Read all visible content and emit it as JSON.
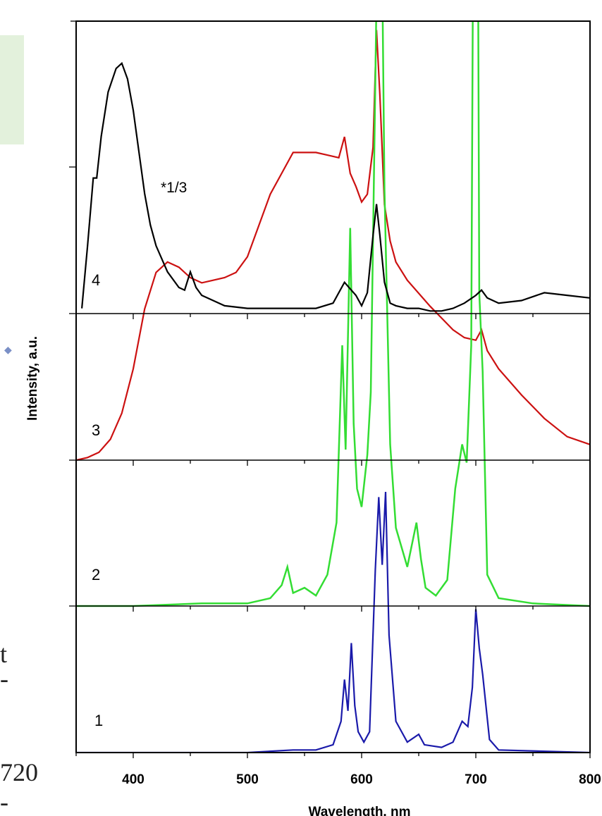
{
  "chart_data": {
    "type": "line",
    "title": "",
    "xlabel": "Wavelength, nm",
    "ylabel": "Intensity, a.u.",
    "xlim": [
      350,
      800
    ],
    "xticks": [
      "400",
      "500",
      "600",
      "700",
      "800"
    ],
    "panel_labels": [
      "4",
      "3",
      "2",
      "1"
    ],
    "annotation": "*1/3",
    "series": [
      {
        "name": "4",
        "color": "#000000",
        "x": [
          355,
          360,
          365,
          368,
          372,
          378,
          385,
          390,
          395,
          400,
          405,
          410,
          415,
          420,
          430,
          440,
          445,
          450,
          455,
          460,
          470,
          480,
          500,
          520,
          540,
          560,
          575,
          585,
          595,
          600,
          605,
          610,
          613,
          616,
          620,
          625,
          630,
          640,
          650,
          660,
          670,
          680,
          690,
          700,
          705,
          710,
          720,
          740,
          760,
          780,
          800
        ],
        "y": [
          0.02,
          0.26,
          0.52,
          0.52,
          0.68,
          0.85,
          0.94,
          0.96,
          0.9,
          0.78,
          0.62,
          0.46,
          0.34,
          0.26,
          0.16,
          0.1,
          0.09,
          0.16,
          0.1,
          0.07,
          0.05,
          0.03,
          0.02,
          0.02,
          0.02,
          0.02,
          0.04,
          0.12,
          0.07,
          0.03,
          0.08,
          0.3,
          0.42,
          0.3,
          0.12,
          0.04,
          0.03,
          0.02,
          0.02,
          0.01,
          0.01,
          0.02,
          0.04,
          0.07,
          0.09,
          0.06,
          0.04,
          0.05,
          0.08,
          0.07,
          0.06
        ]
      },
      {
        "name": "3",
        "color": "#cc1111",
        "x": [
          350,
          360,
          370,
          380,
          390,
          400,
          410,
          420,
          430,
          440,
          450,
          460,
          470,
          480,
          490,
          500,
          510,
          520,
          530,
          540,
          550,
          560,
          570,
          580,
          585,
          590,
          595,
          600,
          605,
          610,
          613,
          616,
          620,
          625,
          630,
          640,
          660,
          680,
          690,
          700,
          705,
          710,
          720,
          740,
          760,
          780,
          800
        ],
        "y": [
          0.0,
          0.01,
          0.03,
          0.08,
          0.18,
          0.35,
          0.58,
          0.72,
          0.76,
          0.74,
          0.7,
          0.68,
          0.69,
          0.7,
          0.72,
          0.78,
          0.9,
          1.02,
          1.1,
          1.18,
          1.18,
          1.18,
          1.17,
          1.16,
          1.24,
          1.1,
          1.05,
          0.99,
          1.02,
          1.2,
          1.65,
          1.4,
          0.98,
          0.84,
          0.76,
          0.69,
          0.59,
          0.5,
          0.47,
          0.46,
          0.5,
          0.42,
          0.35,
          0.25,
          0.16,
          0.09,
          0.06
        ]
      },
      {
        "name": "2",
        "color": "#33dd33",
        "x": [
          350,
          400,
          460,
          500,
          520,
          530,
          535,
          540,
          550,
          560,
          570,
          578,
          583,
          586,
          590,
          593,
          596,
          600,
          605,
          608,
          612,
          616,
          620,
          625,
          630,
          640,
          648,
          652,
          656,
          665,
          675,
          682,
          688,
          692,
          696,
          700,
          703,
          706,
          710,
          720,
          750,
          800
        ],
        "y": [
          0.0,
          0.0,
          0.01,
          0.01,
          0.03,
          0.08,
          0.15,
          0.05,
          0.07,
          0.04,
          0.12,
          0.32,
          1.0,
          0.6,
          1.45,
          0.7,
          0.45,
          0.38,
          0.58,
          0.82,
          2.0,
          3.3,
          1.6,
          0.62,
          0.3,
          0.15,
          0.32,
          0.18,
          0.07,
          0.04,
          0.1,
          0.45,
          0.62,
          0.55,
          1.0,
          4.8,
          1.2,
          0.9,
          0.12,
          0.03,
          0.01,
          0.0
        ]
      },
      {
        "name": "1",
        "color": "#1a1aaa",
        "x": [
          350,
          500,
          540,
          560,
          575,
          582,
          585,
          588,
          591,
          594,
          597,
          602,
          607,
          612,
          615,
          618,
          621,
          624,
          630,
          640,
          650,
          655,
          670,
          680,
          688,
          693,
          697,
          700,
          703,
          706,
          712,
          720,
          800
        ],
        "y": [
          0.0,
          0.0,
          0.01,
          0.01,
          0.03,
          0.12,
          0.28,
          0.16,
          0.42,
          0.18,
          0.08,
          0.04,
          0.08,
          0.7,
          0.98,
          0.72,
          1.0,
          0.45,
          0.12,
          0.04,
          0.07,
          0.03,
          0.02,
          0.04,
          0.12,
          0.1,
          0.25,
          0.55,
          0.4,
          0.3,
          0.05,
          0.01,
          0.0
        ]
      }
    ]
  },
  "side_text": [
    "t",
    "-",
    "720",
    "-"
  ]
}
